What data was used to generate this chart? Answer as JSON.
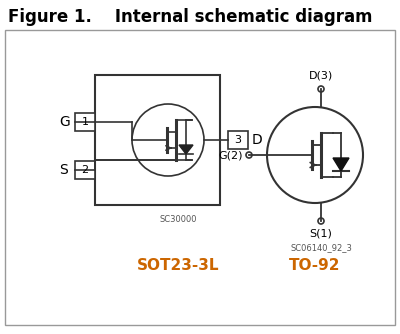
{
  "title_bold": "Figure 1.",
  "title_regular": "    Internal schematic diagram",
  "title_fontsize": 12,
  "bg_color": "#ffffff",
  "border_color": "#999999",
  "line_color": "#333333",
  "text_color": "#000000",
  "orange_color": "#cc6600",
  "label_sot": "SOT23-3L",
  "label_to92": "TO-92",
  "label_sc30000": "SC30000",
  "label_sc06140": "SC06140_92_3",
  "label_G": "G",
  "label_S": "S",
  "label_D": "D",
  "label_D3": "D(3)",
  "label_G2": "G(2)",
  "label_S1": "S(1)"
}
